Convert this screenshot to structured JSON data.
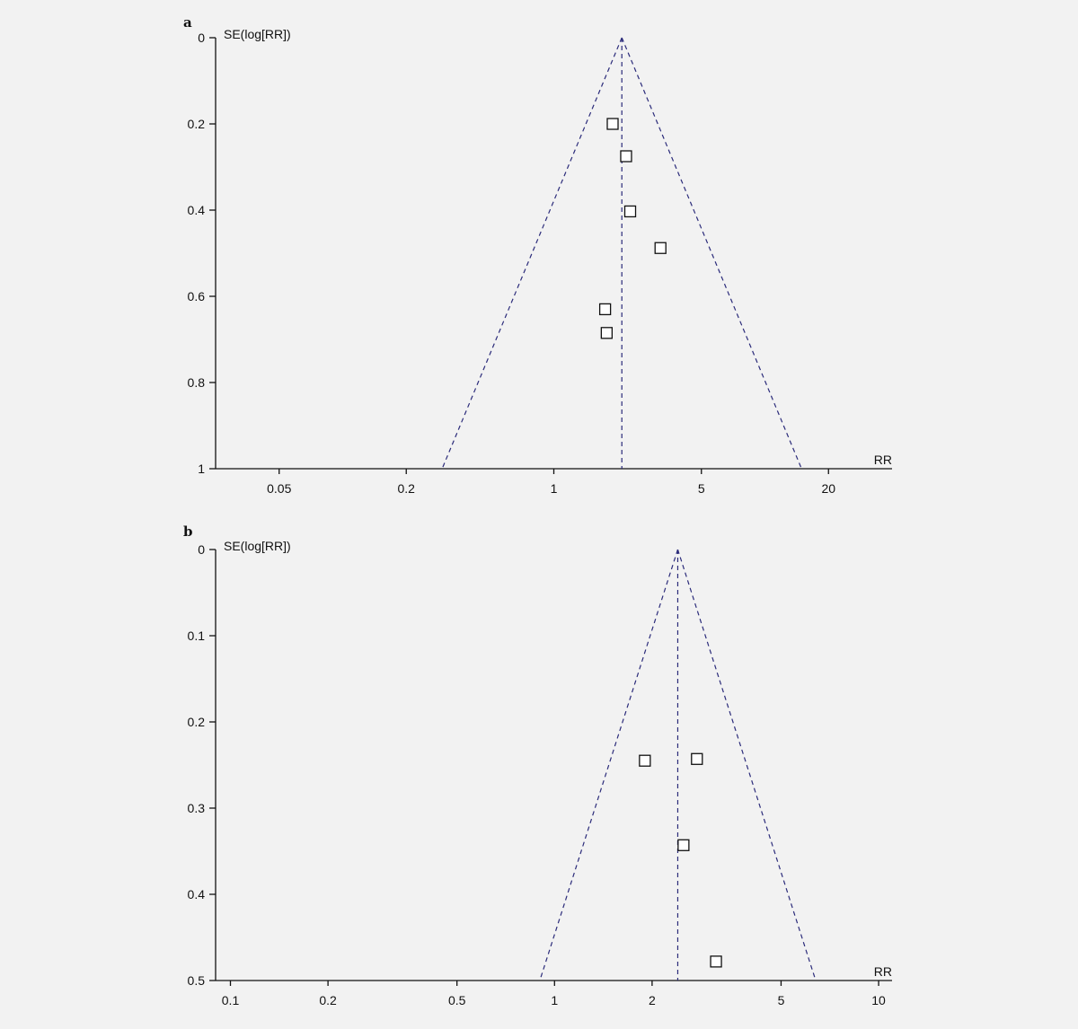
{
  "chart_data": [
    {
      "type": "scatter",
      "subtype": "funnel-plot",
      "panel_label": "a",
      "ylabel": "SE(log[RR])",
      "xlabel": "RR",
      "x_scale": "log",
      "y_reversed": true,
      "xlim": [
        0.025,
        40
      ],
      "ylim": [
        0,
        1
      ],
      "x_ticks": [
        0.05,
        0.2,
        1,
        5,
        20
      ],
      "x_tick_labels": [
        "0.05",
        "0.2",
        "1",
        "5",
        "20"
      ],
      "y_ticks": [
        0,
        0.2,
        0.4,
        0.6,
        0.8,
        1
      ],
      "y_tick_labels": [
        "0",
        "0.2",
        "0.4",
        "0.6",
        "0.8",
        "1"
      ],
      "pooled_rr": 2.1,
      "points": [
        {
          "rr": 1.9,
          "se": 0.2
        },
        {
          "rr": 2.2,
          "se": 0.275
        },
        {
          "rr": 2.3,
          "se": 0.403
        },
        {
          "rr": 3.2,
          "se": 0.488
        },
        {
          "rr": 1.75,
          "se": 0.63
        },
        {
          "rr": 1.78,
          "se": 0.685
        }
      ]
    },
    {
      "type": "scatter",
      "subtype": "funnel-plot",
      "panel_label": "b",
      "ylabel": "SE(log[RR])",
      "xlabel": "RR",
      "x_scale": "log",
      "y_reversed": true,
      "xlim": [
        0.09,
        11
      ],
      "ylim": [
        0,
        0.5
      ],
      "x_ticks": [
        0.1,
        0.2,
        0.5,
        1,
        2,
        5,
        10
      ],
      "x_tick_labels": [
        "0.1",
        "0.2",
        "0.5",
        "1",
        "2",
        "5",
        "10"
      ],
      "y_ticks": [
        0,
        0.1,
        0.2,
        0.3,
        0.4,
        0.5
      ],
      "y_tick_labels": [
        "0",
        "0.1",
        "0.2",
        "0.3",
        "0.4",
        "0.5"
      ],
      "pooled_rr": 2.4,
      "points": [
        {
          "rr": 1.9,
          "se": 0.245
        },
        {
          "rr": 2.75,
          "se": 0.243
        },
        {
          "rr": 2.5,
          "se": 0.343
        },
        {
          "rr": 3.15,
          "se": 0.478
        }
      ]
    }
  ]
}
